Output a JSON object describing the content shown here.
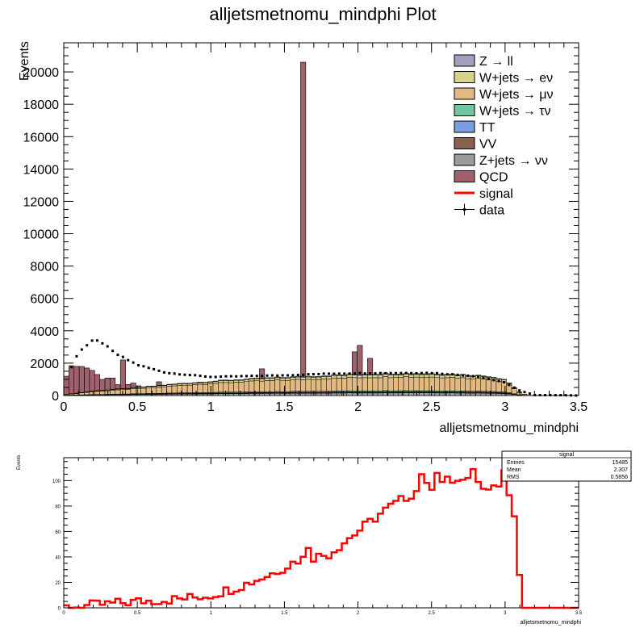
{
  "title": "alljetsmetnomu_mindphi Plot",
  "colors": {
    "zll": "#a59fbe",
    "wenu": "#d4d48a",
    "wmunu": "#e3b983",
    "wtaunu": "#6fc7a0",
    "tt": "#7b9ee0",
    "vv": "#8c5e4e",
    "znunu": "#9a9a9a",
    "qcd": "#9e626c",
    "signal": "#ff0000",
    "data": "#000000"
  },
  "legend": [
    {
      "label": "Z → ll",
      "type": "fill",
      "color_key": "zll"
    },
    {
      "label": "W+jets → eν",
      "type": "fill",
      "color_key": "wenu"
    },
    {
      "label": "W+jets → μν",
      "type": "fill",
      "color_key": "wmunu"
    },
    {
      "label": "W+jets → τν",
      "type": "fill",
      "color_key": "wtaunu"
    },
    {
      "label": "TT",
      "type": "fill",
      "color_key": "tt"
    },
    {
      "label": "VV",
      "type": "fill",
      "color_key": "vv"
    },
    {
      "label": "Z+jets → νν",
      "type": "fill",
      "color_key": "znunu"
    },
    {
      "label": "QCD",
      "type": "fill",
      "color_key": "qcd"
    },
    {
      "label": "signal",
      "type": "line",
      "color_key": "signal"
    },
    {
      "label": "data",
      "type": "marker",
      "color_key": "data"
    }
  ],
  "stats_box": {
    "title": "signal",
    "rows": [
      {
        "label": "Entries",
        "value": "15485"
      },
      {
        "label": "Mean",
        "value": "2.307"
      },
      {
        "label": "RMS",
        "value": "0.5856"
      }
    ]
  },
  "chart_data": [
    {
      "type": "bar",
      "subtype": "stacked-histogram",
      "xlabel": "alljetsmetnomu_mindphi",
      "ylabel": "Events",
      "xlim": [
        0,
        3.5
      ],
      "ylim": [
        0,
        21800
      ],
      "xticks": [
        0,
        0.5,
        1,
        1.5,
        2,
        2.5,
        3,
        3.5
      ],
      "xtick_labels": [
        "0",
        "0.5",
        "1",
        "1.5",
        "2",
        "2.5",
        "3",
        "3.5"
      ],
      "yticks": [
        0,
        2000,
        4000,
        6000,
        8000,
        10000,
        12000,
        14000,
        16000,
        18000,
        20000
      ],
      "ytick_labels": [
        "0",
        "2000",
        "4000",
        "6000",
        "8000",
        "10000",
        "12000",
        "14000",
        "16000",
        "18000",
        "20000"
      ],
      "bin_width": 0.035,
      "stack_order": [
        "znunu",
        "vv",
        "tt",
        "wtaunu",
        "wmunu",
        "wenu",
        "zll"
      ],
      "total_mc_anchors": {
        "x": [
          0.0,
          0.2,
          0.5,
          0.8,
          1.0,
          1.2,
          1.5,
          1.8,
          2.0,
          2.3,
          2.6,
          2.9,
          3.0,
          3.05,
          3.1,
          3.15
        ],
        "y": [
          50,
          280,
          500,
          750,
          880,
          1000,
          1130,
          1250,
          1330,
          1380,
          1350,
          1200,
          1000,
          600,
          200,
          0
        ]
      },
      "stack_fractions": [
        0.12,
        0.03,
        0.02,
        0.05,
        0.62,
        0.12,
        0.04
      ],
      "qcd_anchors": {
        "x": [
          0.0,
          0.05,
          0.3,
          0.5,
          1.0,
          1.5,
          2.0,
          2.5,
          3.0,
          3.15
        ],
        "y": [
          1000,
          1700,
          1200,
          500,
          150,
          100,
          80,
          60,
          30,
          0
        ]
      },
      "qcd_spikes": [
        {
          "x": 0.07,
          "y": 1800
        },
        {
          "x": 0.16,
          "y": 1700
        },
        {
          "x": 0.23,
          "y": 1300
        },
        {
          "x": 0.4,
          "y": 2200
        },
        {
          "x": 0.5,
          "y": 600
        },
        {
          "x": 0.65,
          "y": 850
        },
        {
          "x": 1.35,
          "y": 1650
        },
        {
          "x": 1.625,
          "y": 20600
        },
        {
          "x": 1.97,
          "y": 2700
        },
        {
          "x": 2.0,
          "y": 3100
        },
        {
          "x": 2.07,
          "y": 2300
        }
      ],
      "data_anchors": {
        "x": [
          0.04,
          0.1,
          0.2,
          0.25,
          0.35,
          0.5,
          0.7,
          1.0,
          1.5,
          1.8,
          2.0,
          2.5,
          2.8,
          3.0,
          3.1,
          3.2,
          3.4,
          3.5
        ],
        "y": [
          1500,
          2700,
          3400,
          3350,
          2600,
          1900,
          1400,
          1150,
          1250,
          1350,
          1380,
          1400,
          1200,
          800,
          300,
          30,
          20,
          0
        ]
      }
    },
    {
      "type": "line",
      "subtype": "step-histogram",
      "series": [
        {
          "name": "signal"
        }
      ],
      "xlabel": "alljetsmetnomu_mindphi",
      "ylabel": "Events",
      "xlim": [
        0,
        3.5
      ],
      "ylim": [
        0,
        118
      ],
      "xticks": [
        0,
        0.5,
        1,
        1.5,
        2,
        2.5,
        3,
        3.5
      ],
      "xtick_labels": [
        "0",
        "0.5",
        "1",
        "1.5",
        "2",
        "2.5",
        "3",
        "3.5"
      ],
      "yticks": [
        0,
        20,
        40,
        60,
        80,
        100
      ],
      "ytick_labels": [
        "0",
        "20",
        "40",
        "60",
        "80",
        "100"
      ],
      "bin_width": 0.035,
      "anchors": {
        "x": [
          0.0,
          0.2,
          0.5,
          0.8,
          1.0,
          1.2,
          1.4,
          1.6,
          1.8,
          2.0,
          2.2,
          2.4,
          2.6,
          2.8,
          3.0,
          3.07,
          3.11,
          3.5
        ],
        "y": [
          0,
          2,
          5,
          7,
          10,
          17,
          26,
          38,
          42,
          60,
          78,
          92,
          100,
          98,
          95,
          70,
          0,
          0
        ]
      },
      "spikes": [
        {
          "x": 1.65,
          "y": 47
        },
        {
          "x": 2.43,
          "y": 105
        },
        {
          "x": 2.55,
          "y": 106
        },
        {
          "x": 2.77,
          "y": 109
        },
        {
          "x": 2.98,
          "y": 108
        }
      ]
    }
  ]
}
